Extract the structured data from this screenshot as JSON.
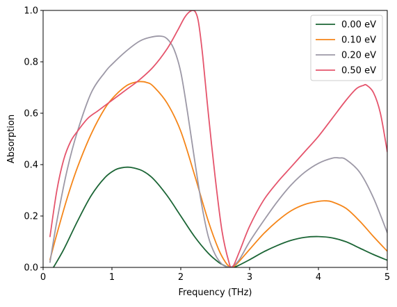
{
  "chart_data": {
    "type": "line",
    "title": "",
    "xlabel": "Frequency (THz)",
    "ylabel": "Absorption",
    "xlim": [
      0,
      5
    ],
    "ylim": [
      0,
      1
    ],
    "xticks": [
      0,
      1,
      2,
      3,
      4,
      5
    ],
    "xtick_labels": [
      "0",
      "1",
      "2",
      "3",
      "4",
      "5"
    ],
    "yticks": [
      0,
      0.2,
      0.4,
      0.6,
      0.8,
      1
    ],
    "ytick_labels": [
      "0.0",
      "0.2",
      "0.4",
      "0.6",
      "0.8",
      "1.0"
    ],
    "grid": false,
    "legend": {
      "position": "upper-right",
      "entries": [
        "0.00 eV",
        "0.10 eV",
        "0.20 eV",
        "0.50 eV"
      ]
    },
    "series": [
      {
        "name": "0.00 eV",
        "color": "#1b6535",
        "x": [
          0.15,
          0.3,
          0.5,
          0.7,
          0.9,
          1.05,
          1.15,
          1.22,
          1.3,
          1.45,
          1.6,
          1.8,
          2.0,
          2.2,
          2.4,
          2.55,
          2.65,
          2.72,
          2.8,
          3.0,
          3.2,
          3.4,
          3.6,
          3.8,
          4.0,
          4.2,
          4.4,
          4.6,
          4.8,
          5.0
        ],
        "y": [
          0.0,
          0.07,
          0.18,
          0.28,
          0.35,
          0.38,
          0.388,
          0.39,
          0.388,
          0.375,
          0.345,
          0.28,
          0.2,
          0.12,
          0.055,
          0.02,
          0.005,
          0.0,
          0.003,
          0.03,
          0.06,
          0.085,
          0.105,
          0.117,
          0.12,
          0.115,
          0.1,
          0.075,
          0.05,
          0.028
        ]
      },
      {
        "name": "0.10 eV",
        "color": "#f58518",
        "x": [
          0.1,
          0.2,
          0.35,
          0.5,
          0.7,
          0.9,
          1.05,
          1.2,
          1.3,
          1.4,
          1.5,
          1.6,
          1.8,
          2.0,
          2.2,
          2.4,
          2.55,
          2.65,
          2.72,
          2.8,
          3.0,
          3.2,
          3.4,
          3.6,
          3.8,
          4.0,
          4.1,
          4.2,
          4.4,
          4.6,
          4.8,
          5.0
        ],
        "y": [
          0.03,
          0.13,
          0.27,
          0.39,
          0.52,
          0.62,
          0.67,
          0.705,
          0.718,
          0.723,
          0.72,
          0.705,
          0.64,
          0.53,
          0.36,
          0.18,
          0.07,
          0.02,
          0.002,
          0.01,
          0.07,
          0.13,
          0.18,
          0.22,
          0.245,
          0.257,
          0.259,
          0.255,
          0.23,
          0.18,
          0.12,
          0.063
        ]
      },
      {
        "name": "0.20 eV",
        "color": "#9c98a6",
        "x": [
          0.1,
          0.2,
          0.35,
          0.5,
          0.7,
          0.9,
          1.0,
          1.2,
          1.4,
          1.55,
          1.7,
          1.8,
          1.9,
          2.0,
          2.1,
          2.2,
          2.3,
          2.4,
          2.5,
          2.6,
          2.68,
          2.75,
          2.85,
          3.0,
          3.2,
          3.4,
          3.6,
          3.8,
          4.0,
          4.2,
          4.3,
          4.4,
          4.6,
          4.8,
          5.0
        ],
        "y": [
          0.02,
          0.18,
          0.38,
          0.53,
          0.68,
          0.76,
          0.79,
          0.84,
          0.88,
          0.895,
          0.9,
          0.89,
          0.85,
          0.76,
          0.6,
          0.42,
          0.25,
          0.12,
          0.05,
          0.012,
          0.002,
          0.004,
          0.03,
          0.1,
          0.18,
          0.255,
          0.32,
          0.37,
          0.405,
          0.425,
          0.426,
          0.42,
          0.37,
          0.27,
          0.135
        ]
      },
      {
        "name": "0.50 eV",
        "color": "#e5546c",
        "x": [
          0.1,
          0.2,
          0.3,
          0.4,
          0.5,
          0.65,
          0.8,
          1.0,
          1.2,
          1.4,
          1.6,
          1.8,
          1.95,
          2.05,
          2.12,
          2.18,
          2.22,
          2.26,
          2.32,
          2.4,
          2.5,
          2.6,
          2.7,
          2.75,
          2.85,
          3.0,
          3.2,
          3.4,
          3.6,
          3.8,
          4.0,
          4.2,
          4.4,
          4.55,
          4.65,
          4.7,
          4.8,
          4.9,
          5.0
        ],
        "y": [
          0.12,
          0.3,
          0.42,
          0.49,
          0.53,
          0.58,
          0.61,
          0.65,
          0.69,
          0.73,
          0.78,
          0.85,
          0.92,
          0.97,
          0.993,
          1.0,
          0.99,
          0.95,
          0.82,
          0.6,
          0.35,
          0.14,
          0.02,
          0.0,
          0.06,
          0.16,
          0.26,
          0.33,
          0.39,
          0.45,
          0.51,
          0.58,
          0.65,
          0.695,
          0.708,
          0.709,
          0.68,
          0.6,
          0.45
        ]
      }
    ]
  }
}
